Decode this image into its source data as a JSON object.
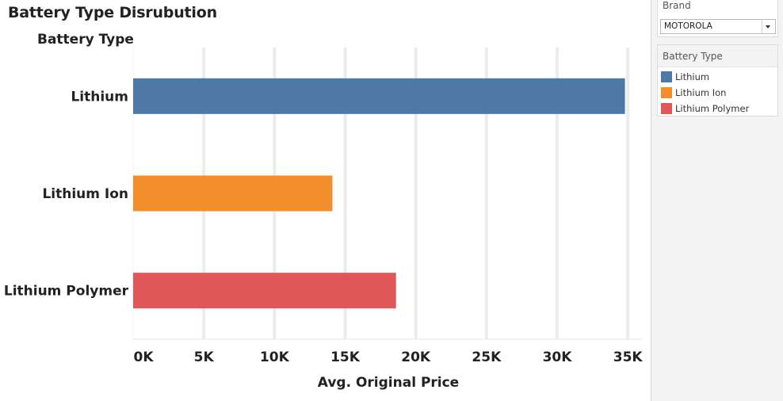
{
  "title": "Battery Type Disrubution",
  "chart_data": {
    "type": "bar",
    "orientation": "horizontal",
    "title": "Battery Type Disrubution",
    "ylabel": "Battery Type",
    "xlabel": "Avg. Original Price",
    "categories": [
      "Lithium",
      "Lithium Ion",
      "Lithium Polymer"
    ],
    "values": [
      34800,
      14100,
      18600
    ],
    "colors": [
      "#4e79a7",
      "#f28e2b",
      "#e15759"
    ],
    "xlim": [
      0,
      36000
    ],
    "ticks": [
      0,
      5000,
      10000,
      15000,
      20000,
      25000,
      30000,
      35000
    ],
    "tick_labels": [
      "0K",
      "5K",
      "10K",
      "15K",
      "20K",
      "25K",
      "30K",
      "35K"
    ],
    "grid": "vertical",
    "legend": "right"
  },
  "filter": {
    "title": "Brand",
    "value": "MOTOROLA"
  },
  "legend": {
    "title": "Battery Type",
    "items": [
      {
        "label": "Lithium",
        "color": "#4e79a7"
      },
      {
        "label": "Lithium Ion",
        "color": "#f28e2b"
      },
      {
        "label": "Lithium Polymer",
        "color": "#e15759"
      }
    ]
  }
}
